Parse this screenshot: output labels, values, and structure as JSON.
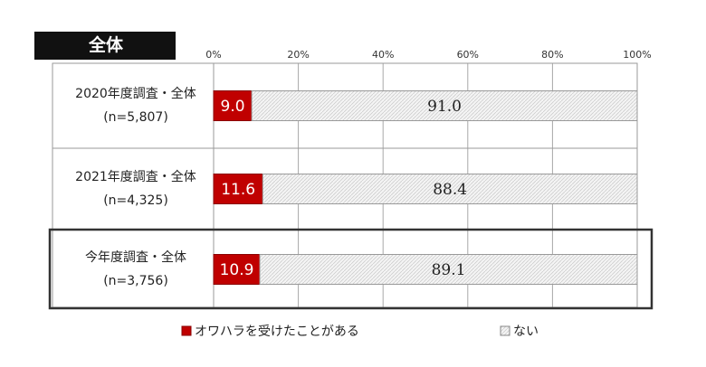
{
  "chart_data": {
    "type": "bar",
    "orientation": "horizontal",
    "stacked": true,
    "title": "全体",
    "categories": [
      {
        "label": "2020年度調査・全体",
        "n": "(n=5,807)"
      },
      {
        "label": "2021年度調査・全体",
        "n": "(n=4,325)"
      },
      {
        "label": "今年度調査・全体",
        "n": "(n=3,756)"
      }
    ],
    "series": [
      {
        "name": "オワハラを受けたことがある",
        "values": [
          9.0,
          11.6,
          10.9
        ],
        "labels": [
          "9.0",
          "11.6",
          "10.9"
        ],
        "color": "#c00000"
      },
      {
        "name": "ない",
        "values": [
          91.0,
          88.4,
          89.1
        ],
        "labels": [
          "91.0",
          "88.4",
          "89.1"
        ],
        "color": "#f0f0f0"
      }
    ],
    "xlim": [
      0,
      100
    ],
    "x_ticks": [
      "0%",
      "20%",
      "40%",
      "60%",
      "80%",
      "100%"
    ],
    "legend_position": "bottom",
    "highlighted_category": 2
  }
}
